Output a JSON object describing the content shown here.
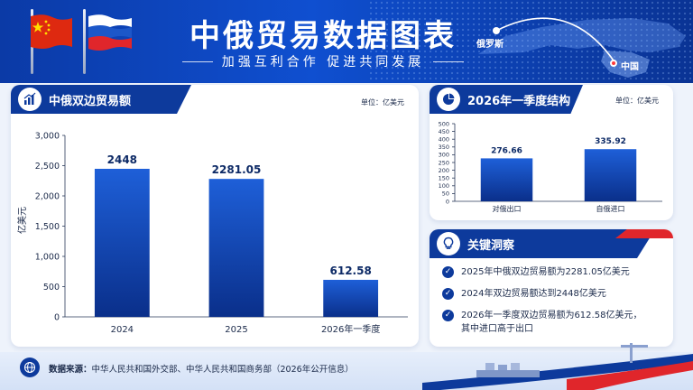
{
  "header": {
    "title": "中俄贸易数据图表",
    "subtitle": "加强互利合作 促进共同发展",
    "map_label_russia": "俄罗斯",
    "map_label_china": "中国"
  },
  "colors": {
    "primary": "#0d3a9c",
    "bar_top": "#1e5fd8",
    "bar_bottom": "#0a2f8a",
    "china_red": "#de2910",
    "accent_red": "#e0262b"
  },
  "left_panel": {
    "title": "中俄双边贸易额",
    "icon": "bar-chart-icon",
    "unit": "单位：亿美元",
    "ylabel": "亿美元"
  },
  "right_panel": {
    "title": "2026年一季度结构",
    "icon": "pie-chart-icon",
    "unit": "单位：亿美元"
  },
  "insight_panel": {
    "title": "关键洞察",
    "icon": "lightbulb-icon",
    "items": [
      "2025年中俄双边贸易额为2281.05亿美元",
      "2024年双边贸易额达到2448亿美元",
      "2026年一季度双边贸易额为612.58亿美元，其中进口高于出口"
    ]
  },
  "footer": {
    "source_label": "数据来源：",
    "source_text": "中华人民共和国外交部、中华人民共和国商务部（2026年公开信息）"
  },
  "chart_data": [
    {
      "type": "bar",
      "title": "中俄双边贸易额",
      "ylabel": "亿美元",
      "categories": [
        "2024",
        "2025",
        "2026年一季度"
      ],
      "values": [
        2448,
        2281.05,
        612.58
      ],
      "value_labels": [
        "2448",
        "2281.05",
        "612.58"
      ],
      "ylim": [
        0,
        3000
      ],
      "yticks": [
        0,
        500,
        1000,
        1500,
        2000,
        2500,
        3000
      ],
      "ytick_labels": [
        "0",
        "500",
        "1,000",
        "1,500",
        "2,000",
        "2,500",
        "3,000"
      ],
      "grid": false
    },
    {
      "type": "bar",
      "title": "2026年一季度结构",
      "categories": [
        "对俄出口",
        "自俄进口"
      ],
      "values": [
        276.66,
        335.92
      ],
      "value_labels": [
        "276.66",
        "335.92"
      ],
      "ylim": [
        0,
        500
      ],
      "yticks": [
        0,
        50,
        100,
        150,
        200,
        250,
        300,
        350,
        400,
        450,
        500
      ],
      "ytick_labels": [
        "0",
        "50",
        "100",
        "150",
        "200",
        "250",
        "300",
        "350",
        "400",
        "450",
        "500"
      ],
      "grid": false
    }
  ]
}
